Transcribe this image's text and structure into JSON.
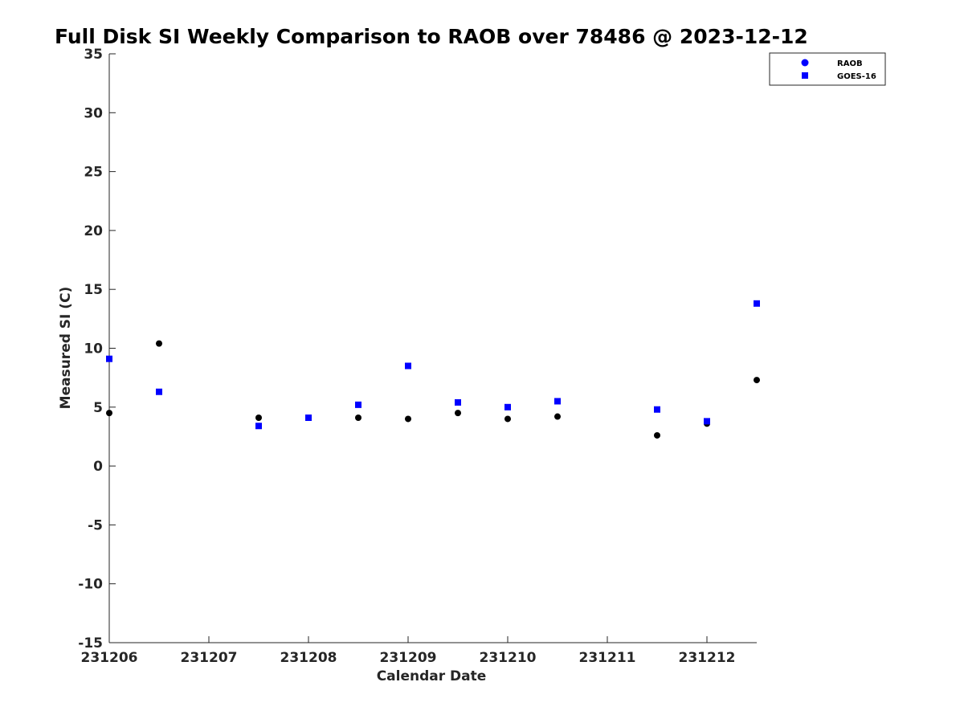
{
  "chart_data": {
    "type": "scatter",
    "title": "Full Disk SI Weekly Comparison to RAOB over 78486 @ 2023-12-12",
    "xlabel": "Calendar Date",
    "ylabel": "Measured SI (C)",
    "x_ticks": [
      "231206",
      "231207",
      "231208",
      "231209",
      "231210",
      "231211",
      "231212"
    ],
    "x_range_days": [
      0,
      6.5
    ],
    "ylim": [
      -15,
      35
    ],
    "y_ticks": [
      -15,
      -10,
      -5,
      0,
      5,
      10,
      15,
      20,
      25,
      30,
      35
    ],
    "grid": false,
    "legend_position": "top-right",
    "series": [
      {
        "name": "RAOB",
        "marker": "circle",
        "color": "#000000",
        "legend_color": "#0000ff",
        "x": [
          0,
          0.5,
          1.5,
          2,
          2.5,
          3,
          3.5,
          4,
          4.5,
          5.5,
          6,
          6.5
        ],
        "values": [
          4.5,
          10.4,
          4.1,
          4.1,
          4.1,
          4.0,
          4.5,
          4.0,
          4.2,
          2.6,
          3.6,
          7.3
        ]
      },
      {
        "name": "GOES-16",
        "marker": "square",
        "color": "#0000ff",
        "legend_color": "#0000ff",
        "x": [
          0,
          0.5,
          1.5,
          2,
          2.5,
          3,
          3.5,
          4,
          4.5,
          5.5,
          6,
          6.5
        ],
        "values": [
          9.1,
          6.3,
          3.4,
          4.1,
          5.2,
          8.5,
          5.4,
          5.0,
          5.5,
          4.8,
          3.8,
          13.8
        ]
      }
    ]
  }
}
